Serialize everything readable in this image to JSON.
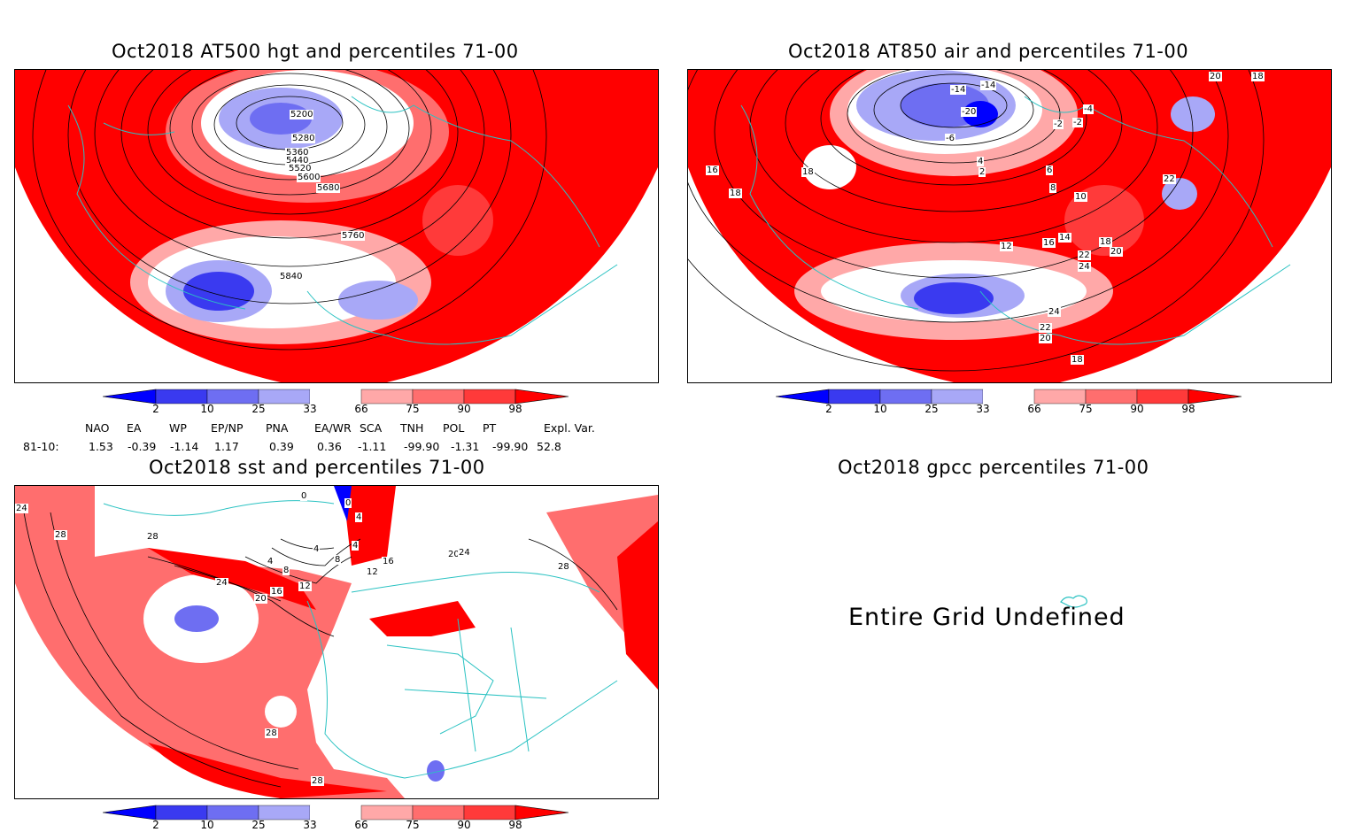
{
  "panels": {
    "p1": {
      "title": "Oct2018 AT500 hgt and percentiles 71-00",
      "labels": [
        "5200",
        "5280",
        "5360",
        "5440",
        "5520",
        "5600",
        "5680",
        "5760",
        "5840"
      ]
    },
    "p2": {
      "title": "Oct2018 AT850 air and percentiles 71-00",
      "labels": [
        "-14",
        "-14",
        "-20",
        "-2",
        "-4",
        "-6",
        "2",
        "-2",
        "16",
        "18",
        "18",
        "4",
        "6",
        "8",
        "10",
        "22",
        "12",
        "14",
        "16",
        "18",
        "20",
        "22",
        "24",
        "24",
        "22",
        "20",
        "18",
        "20",
        "18"
      ]
    },
    "p3": {
      "title": "Oct2018 sst and percentiles 71-00",
      "labels": [
        "24",
        "28",
        "28",
        "24",
        "20",
        "16",
        "12",
        "8",
        "4",
        "4",
        "8",
        "4",
        "12",
        "16",
        "20",
        "24",
        "28",
        "28",
        "28",
        "0",
        "4",
        "0"
      ]
    },
    "p4": {
      "title": "Oct2018 gpcc percentiles 71-00",
      "message": "Entire Grid Undefined"
    }
  },
  "colorbar": {
    "labels": [
      "2",
      "10",
      "25",
      "33",
      "66",
      "75",
      "90",
      "98"
    ],
    "colors": [
      "#0000ff",
      "#3a3af0",
      "#6e6ef2",
      "#a8a8f7",
      "#ffffff",
      "#ffa8a8",
      "#ff6e6e",
      "#ff3a3a",
      "#ff0000"
    ]
  },
  "indices": {
    "headers": [
      "NAO",
      "EA",
      "WP",
      "EP/NP",
      "PNA",
      "EA/WR",
      "SCA",
      "TNH",
      "POL",
      "PT",
      "Expl. Var."
    ],
    "row_label": "81-10:",
    "values": [
      "1.53",
      "-0.39",
      "-1.14",
      "1.17",
      "0.39",
      "0.36",
      "-1.11",
      "-99.90",
      "-1.31",
      "-99.90",
      "52.8"
    ]
  }
}
